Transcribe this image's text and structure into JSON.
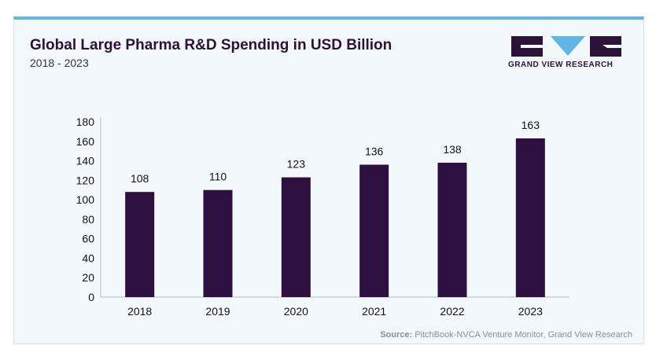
{
  "header": {
    "title": "Global Large Pharma R&D Spending in USD Billion",
    "subtitle": "2018 - 2023"
  },
  "logo": {
    "text": "GRAND VIEW RESEARCH",
    "color": "#2a1238",
    "accent": "#5fb6e4"
  },
  "footer": {
    "source_label": "Source:",
    "source_text": "PitchBook-NVCA Venture Monitor, Grand View Research"
  },
  "chart_data": {
    "type": "bar",
    "title": "Global Large Pharma R&D Spending in USD Billion",
    "subtitle": "2018 - 2023",
    "categories": [
      "2018",
      "2019",
      "2020",
      "2021",
      "2022",
      "2023"
    ],
    "values": [
      108,
      110,
      123,
      136,
      138,
      163
    ],
    "data_labels": [
      "108",
      "110",
      "123",
      "136",
      "138",
      "163"
    ],
    "ylim": [
      0,
      180
    ],
    "yticks": [
      0,
      20,
      40,
      60,
      80,
      100,
      120,
      140,
      160,
      180
    ],
    "grid": false,
    "legend": "none",
    "bar_color": "#2e1040"
  }
}
